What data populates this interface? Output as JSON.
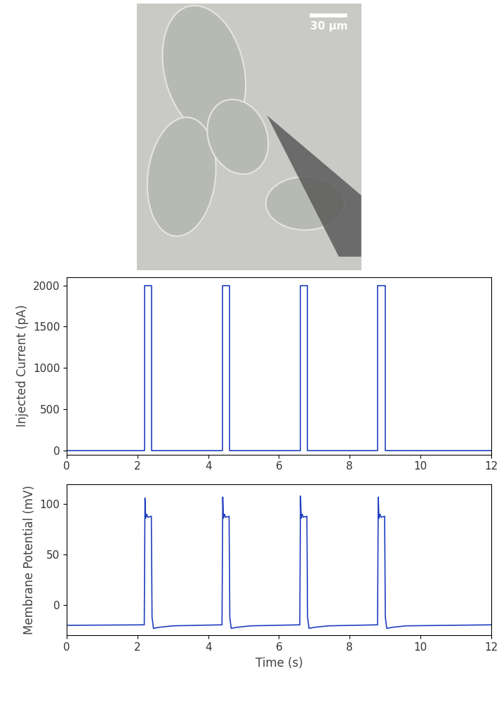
{
  "image": {
    "scale_bar_label": "30 µm"
  },
  "chart_data": [
    {
      "type": "line",
      "y_label": "Injected Current (pA)",
      "color": "#1f3fbf",
      "x": [
        0,
        2.2,
        2.2,
        2.4,
        2.4,
        4.4,
        4.4,
        4.6,
        4.6,
        6.6,
        6.6,
        6.8,
        6.8,
        8.8,
        8.8,
        9.0,
        9.0,
        12
      ],
      "values": [
        0,
        0,
        2000,
        2000,
        0,
        0,
        2000,
        2000,
        0,
        0,
        2000,
        2000,
        0,
        0,
        2000,
        2000,
        0,
        0
      ],
      "xlim": [
        0,
        12
      ],
      "xticks": [
        0,
        2,
        4,
        6,
        8,
        10,
        12
      ],
      "ylim": [
        -50,
        2100
      ],
      "yticks": [
        0,
        500,
        1000,
        1500,
        2000
      ],
      "grid": false
    },
    {
      "type": "line",
      "y_label": "Membrane Potential (mV)",
      "x_label": "Time (s)",
      "color": "#1f3fbf",
      "x": [
        0,
        2.19,
        2.21,
        2.23,
        2.26,
        2.29,
        2.39,
        2.41,
        2.45,
        2.6,
        3.0,
        4.39,
        4.41,
        4.43,
        4.46,
        4.49,
        4.59,
        4.61,
        4.65,
        4.8,
        5.2,
        6.59,
        6.61,
        6.63,
        6.66,
        6.69,
        6.79,
        6.81,
        6.85,
        7.0,
        7.4,
        8.79,
        8.81,
        8.83,
        8.86,
        8.89,
        8.99,
        9.01,
        9.05,
        9.2,
        9.6,
        12
      ],
      "values": [
        -20,
        -19.5,
        106,
        86,
        90,
        87,
        88,
        -12,
        -23,
        -22,
        -20.5,
        -19.5,
        107,
        86,
        90,
        87,
        88,
        -12,
        -23,
        -22,
        -20.5,
        -19.5,
        108,
        86,
        90,
        87,
        88,
        -12,
        -23,
        -22,
        -20.5,
        -19.5,
        107,
        86,
        90,
        87,
        88,
        -12,
        -23,
        -22,
        -20.5,
        -19.5
      ],
      "xlim": [
        0,
        12
      ],
      "xticks": [
        0,
        2,
        4,
        6,
        8,
        10,
        12
      ],
      "ylim": [
        -30,
        120
      ],
      "yticks": [
        0,
        50,
        100
      ],
      "grid": false
    }
  ]
}
